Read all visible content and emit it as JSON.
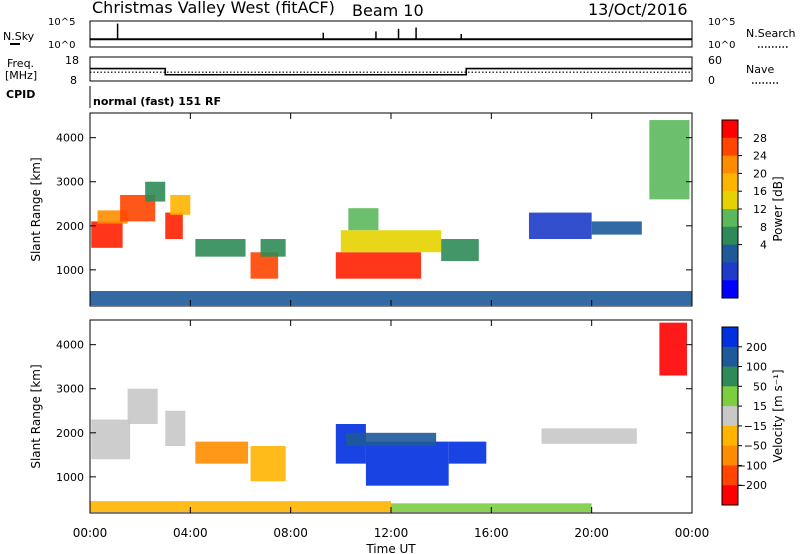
{
  "header": {
    "station": "Christmas Valley West (fitACF)",
    "beam": "Beam 10",
    "date": "13/Oct/2016"
  },
  "top_panels": {
    "nsky_label": "N.Sky",
    "nsearch_label": "N.Search",
    "noise_ticks": [
      "10^5",
      "10^0"
    ],
    "freq_label_1": "Freq.",
    "freq_label_2": "[MHz]",
    "freq_ticks": [
      "18",
      "8"
    ],
    "nave_label": "Nave",
    "nave_ticks": [
      "60",
      "0"
    ],
    "cpid_label": "CPID",
    "cpid_text": "normal (fast) 151 RF",
    "noise_baseline_level": 0.3,
    "noise_spikes": [
      {
        "t": 1.1,
        "v": 0.9
      },
      {
        "t": 9.3,
        "v": 0.55
      },
      {
        "t": 11.4,
        "v": 0.6
      },
      {
        "t": 12.3,
        "v": 0.7
      },
      {
        "t": 13.0,
        "v": 0.75
      },
      {
        "t": 14.8,
        "v": 0.5
      }
    ],
    "freq_steps": [
      {
        "t0": 0,
        "t1": 3.0,
        "mhz": 13.2
      },
      {
        "t0": 3.0,
        "t1": 15.0,
        "mhz": 10.6
      },
      {
        "t0": 15.0,
        "t1": 24.0,
        "mhz": 13.2
      }
    ],
    "nave_level": 22
  },
  "chart_data": {
    "type": "heatmap",
    "x_axis": {
      "label": "Time UT",
      "range_hours": [
        0,
        24
      ],
      "tick_labels": [
        "00:00",
        "04:00",
        "08:00",
        "12:00",
        "16:00",
        "20:00",
        "00:00"
      ]
    },
    "panels": [
      {
        "name": "power",
        "ylabel": "Slant Range [km]",
        "yrange_km": [
          180,
          4560
        ],
        "ytick_labels": [
          "1000",
          "2000",
          "3000",
          "4000"
        ],
        "colorbar": {
          "label": "Power [dB]",
          "tick_labels": [
            "28",
            "24",
            "20",
            "16",
            "12",
            "8",
            "4"
          ],
          "colors": [
            "#ff0000",
            "#ff4500",
            "#ff8c00",
            "#ffb400",
            "#e6d200",
            "#5cb85c",
            "#2e8b57",
            "#1e5a9a",
            "#1e3cc8",
            "#0000ff"
          ]
        },
        "patches": [
          {
            "t0": 0.05,
            "t1": 1.3,
            "r0": 1500,
            "r1": 2100,
            "color": "#ff2000"
          },
          {
            "t0": 0.3,
            "t1": 1.5,
            "r0": 2050,
            "r1": 2350,
            "color": "#ff8c00"
          },
          {
            "t0": 1.2,
            "t1": 2.6,
            "r0": 2100,
            "r1": 2700,
            "color": "#ff4500"
          },
          {
            "t0": 2.2,
            "t1": 3.0,
            "r0": 2550,
            "r1": 3000,
            "color": "#2e8b57"
          },
          {
            "t0": 3.0,
            "t1": 3.7,
            "r0": 1700,
            "r1": 2300,
            "color": "#ff2000"
          },
          {
            "t0": 3.2,
            "t1": 4.0,
            "r0": 2250,
            "r1": 2700,
            "color": "#ffb400"
          },
          {
            "t0": 4.2,
            "t1": 6.2,
            "r0": 1300,
            "r1": 1700,
            "color": "#2e8b57"
          },
          {
            "t0": 6.4,
            "t1": 7.5,
            "r0": 800,
            "r1": 1400,
            "color": "#ff4500"
          },
          {
            "t0": 6.8,
            "t1": 7.8,
            "r0": 1300,
            "r1": 1700,
            "color": "#2e8b57"
          },
          {
            "t0": 9.8,
            "t1": 13.2,
            "r0": 800,
            "r1": 1400,
            "color": "#ff2000"
          },
          {
            "t0": 10.0,
            "t1": 14.0,
            "r0": 1400,
            "r1": 1900,
            "color": "#e6d200"
          },
          {
            "t0": 10.3,
            "t1": 11.5,
            "r0": 1900,
            "r1": 2400,
            "color": "#5cb85c"
          },
          {
            "t0": 14.0,
            "t1": 15.5,
            "r0": 1200,
            "r1": 1700,
            "color": "#2e8b57"
          },
          {
            "t0": 17.5,
            "t1": 20.0,
            "r0": 1700,
            "r1": 2300,
            "color": "#1e3cc8"
          },
          {
            "t0": 20.0,
            "t1": 22.0,
            "r0": 1800,
            "r1": 2100,
            "color": "#1e5a9a"
          },
          {
            "t0": 22.3,
            "t1": 23.9,
            "r0": 2600,
            "r1": 4400,
            "color": "#5cb85c"
          },
          {
            "t0": 0.0,
            "t1": 24.0,
            "r0": 200,
            "r1": 520,
            "color": "#1e5a9a"
          }
        ]
      },
      {
        "name": "velocity",
        "ylabel": "Slant Range [km]",
        "yrange_km": [
          180,
          4560
        ],
        "ytick_labels": [
          "1000",
          "2000",
          "3000",
          "4000"
        ],
        "colorbar": {
          "label": "Velocity [m s⁻¹]",
          "tick_labels": [
            "200",
            "100",
            "50",
            "15",
            "−15",
            "−50",
            "−100",
            "−200"
          ],
          "colors": [
            "#0030e0",
            "#1e5a9a",
            "#2e8b57",
            "#7ccd40",
            "#c8c8c8",
            "#ffb400",
            "#ff8c00",
            "#ff4500",
            "#ff0000"
          ]
        },
        "patches": [
          {
            "t0": 0.05,
            "t1": 1.6,
            "r0": 1400,
            "r1": 2300,
            "color": "#c8c8c8"
          },
          {
            "t0": 1.5,
            "t1": 2.7,
            "r0": 2200,
            "r1": 3000,
            "color": "#c8c8c8"
          },
          {
            "t0": 3.0,
            "t1": 3.8,
            "r0": 1700,
            "r1": 2500,
            "color": "#c8c8c8"
          },
          {
            "t0": 4.2,
            "t1": 6.3,
            "r0": 1300,
            "r1": 1800,
            "color": "#ff8c00"
          },
          {
            "t0": 6.4,
            "t1": 7.8,
            "r0": 900,
            "r1": 1700,
            "color": "#ffb400"
          },
          {
            "t0": 9.8,
            "t1": 11.0,
            "r0": 1300,
            "r1": 2200,
            "color": "#0030e0"
          },
          {
            "t0": 11.0,
            "t1": 14.3,
            "r0": 800,
            "r1": 1800,
            "color": "#0030e0"
          },
          {
            "t0": 10.2,
            "t1": 13.8,
            "r0": 1700,
            "r1": 2000,
            "color": "#1e5a9a"
          },
          {
            "t0": 14.3,
            "t1": 15.8,
            "r0": 1300,
            "r1": 1800,
            "color": "#0030e0"
          },
          {
            "t0": 18.0,
            "t1": 21.8,
            "r0": 1750,
            "r1": 2100,
            "color": "#c8c8c8"
          },
          {
            "t0": 22.7,
            "t1": 23.8,
            "r0": 3300,
            "r1": 4500,
            "color": "#ff0000"
          },
          {
            "t0": 0.0,
            "t1": 12.0,
            "r0": 200,
            "r1": 450,
            "color": "#ffb400"
          },
          {
            "t0": 12.0,
            "t1": 20.0,
            "r0": 200,
            "r1": 400,
            "color": "#7ccd40"
          }
        ]
      }
    ]
  }
}
